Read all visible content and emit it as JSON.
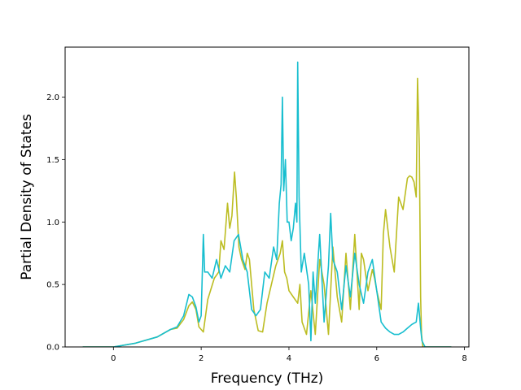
{
  "chart_data": {
    "type": "line",
    "title": "",
    "xlabel": "Frequency (THz)",
    "ylabel": "Partial Density of States",
    "xlim": [
      -1.1,
      8.1
    ],
    "ylim": [
      0.0,
      2.4
    ],
    "xticks": [
      0,
      2,
      4,
      6,
      8
    ],
    "yticks": [
      0.0,
      0.5,
      1.0,
      1.5,
      2.0
    ],
    "xtick_labels": [
      "0",
      "2",
      "4",
      "6",
      "8"
    ],
    "ytick_labels": [
      "0.0",
      "0.5",
      "1.0",
      "1.5",
      "2.0"
    ],
    "grid": false,
    "legend": "none",
    "series": [
      {
        "color": "#bcbd22",
        "x": [
          -0.7,
          0.0,
          0.5,
          1.0,
          1.3,
          1.45,
          1.6,
          1.72,
          1.8,
          1.88,
          1.95,
          2.05,
          2.15,
          2.3,
          2.4,
          2.45,
          2.52,
          2.6,
          2.65,
          2.7,
          2.76,
          2.8,
          2.86,
          2.92,
          3.0,
          3.05,
          3.1,
          3.2,
          3.3,
          3.4,
          3.5,
          3.6,
          3.7,
          3.8,
          3.85,
          3.9,
          3.95,
          4.0,
          4.1,
          4.2,
          4.25,
          4.3,
          4.4,
          4.5,
          4.6,
          4.7,
          4.8,
          4.9,
          5.0,
          5.1,
          5.2,
          5.3,
          5.4,
          5.5,
          5.55,
          5.6,
          5.65,
          5.7,
          5.8,
          5.9,
          5.95,
          6.0,
          6.1,
          6.15,
          6.2,
          6.3,
          6.4,
          6.5,
          6.6,
          6.7,
          6.75,
          6.8,
          6.85,
          6.9,
          6.93,
          6.97,
          7.0,
          7.02,
          7.05,
          7.1,
          7.7
        ],
        "y": [
          0.0,
          0.0,
          0.03,
          0.08,
          0.14,
          0.15,
          0.22,
          0.33,
          0.36,
          0.3,
          0.16,
          0.12,
          0.38,
          0.55,
          0.6,
          0.85,
          0.78,
          1.15,
          0.95,
          1.05,
          1.4,
          1.2,
          0.8,
          0.7,
          0.62,
          0.75,
          0.7,
          0.3,
          0.13,
          0.12,
          0.35,
          0.5,
          0.65,
          0.75,
          0.85,
          0.6,
          0.55,
          0.45,
          0.4,
          0.35,
          0.5,
          0.2,
          0.1,
          0.45,
          0.1,
          0.7,
          0.5,
          0.1,
          0.8,
          0.4,
          0.2,
          0.75,
          0.3,
          0.9,
          0.6,
          0.3,
          0.75,
          0.7,
          0.45,
          0.62,
          0.55,
          0.45,
          0.3,
          0.9,
          1.1,
          0.8,
          0.6,
          1.2,
          1.1,
          1.35,
          1.37,
          1.36,
          1.32,
          1.2,
          2.15,
          1.6,
          0.4,
          0.1,
          0.0,
          0.0,
          0.0
        ]
      },
      {
        "color": "#17becf",
        "x": [
          -0.7,
          0.0,
          0.5,
          1.0,
          1.3,
          1.45,
          1.6,
          1.72,
          1.8,
          1.88,
          1.95,
          2.0,
          2.05,
          2.08,
          2.15,
          2.25,
          2.35,
          2.45,
          2.55,
          2.65,
          2.75,
          2.85,
          2.95,
          3.05,
          3.15,
          3.25,
          3.35,
          3.45,
          3.55,
          3.65,
          3.72,
          3.78,
          3.82,
          3.85,
          3.88,
          3.92,
          3.96,
          4.0,
          4.05,
          4.1,
          4.15,
          4.18,
          4.2,
          4.23,
          4.28,
          4.35,
          4.45,
          4.5,
          4.55,
          4.6,
          4.7,
          4.8,
          4.9,
          4.95,
          5.0,
          5.1,
          5.2,
          5.3,
          5.4,
          5.5,
          5.6,
          5.7,
          5.8,
          5.9,
          6.0,
          6.1,
          6.2,
          6.3,
          6.4,
          6.5,
          6.6,
          6.7,
          6.8,
          6.9,
          6.95,
          7.0,
          7.03,
          7.1,
          7.7
        ],
        "y": [
          0.0,
          0.0,
          0.03,
          0.08,
          0.14,
          0.16,
          0.25,
          0.42,
          0.4,
          0.32,
          0.2,
          0.25,
          0.9,
          0.6,
          0.6,
          0.55,
          0.7,
          0.55,
          0.65,
          0.6,
          0.85,
          0.9,
          0.7,
          0.6,
          0.3,
          0.25,
          0.3,
          0.6,
          0.55,
          0.8,
          0.7,
          1.15,
          1.3,
          2.0,
          1.25,
          1.5,
          1.0,
          1.0,
          0.85,
          0.95,
          1.15,
          1.0,
          2.28,
          1.2,
          0.6,
          0.75,
          0.5,
          0.05,
          0.6,
          0.35,
          0.9,
          0.2,
          0.65,
          1.07,
          0.7,
          0.6,
          0.3,
          0.65,
          0.4,
          0.75,
          0.5,
          0.35,
          0.6,
          0.7,
          0.45,
          0.2,
          0.15,
          0.12,
          0.1,
          0.1,
          0.12,
          0.15,
          0.18,
          0.2,
          0.35,
          0.15,
          0.05,
          0.0,
          0.0
        ]
      }
    ]
  }
}
